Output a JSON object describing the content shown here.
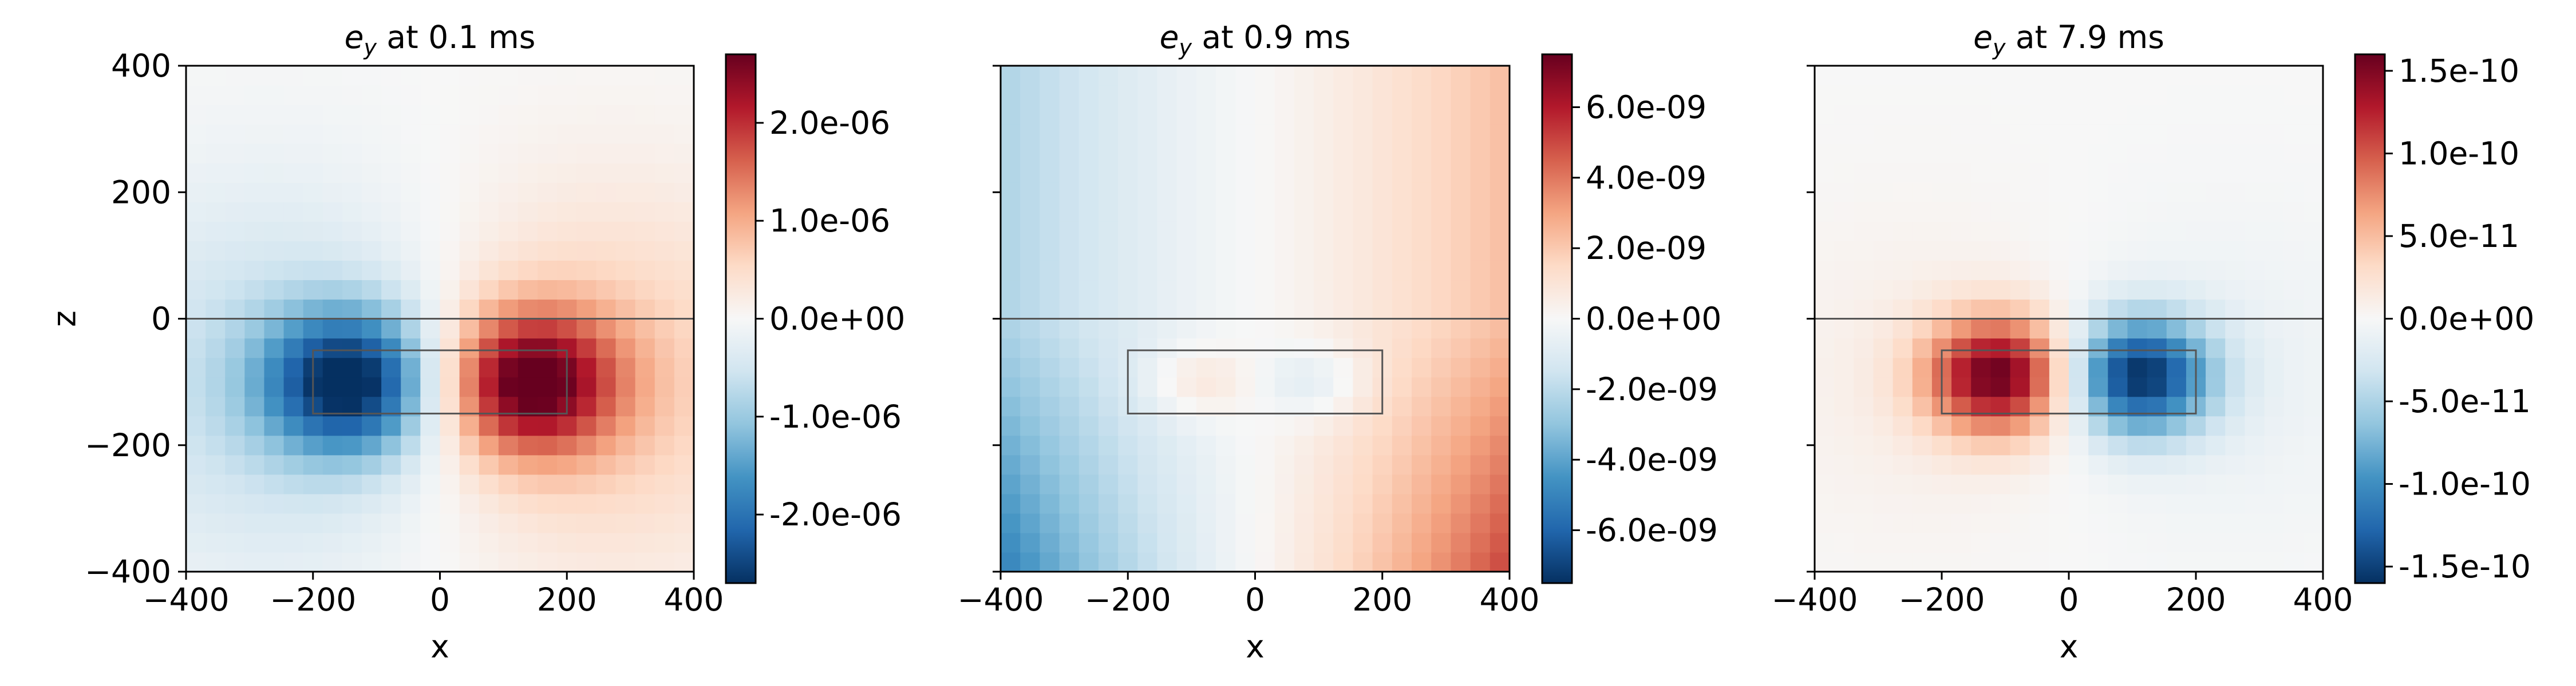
{
  "chart_data": [
    {
      "type": "heatmap",
      "title_symbol": "e",
      "title_sub": "y",
      "title_rest": " at 0.1 ms",
      "xlabel": "x",
      "ylabel": "z",
      "xlim": [
        -400,
        400
      ],
      "ylim": [
        -400,
        400
      ],
      "xticks": [
        -400,
        -200,
        0,
        200,
        400
      ],
      "yticks": [
        -400,
        -200,
        0,
        200,
        400
      ],
      "xtick_labels": [
        "−400",
        "−200",
        "0",
        "200",
        "400"
      ],
      "ytick_labels": [
        "−400",
        "−200",
        "0",
        "200",
        "400"
      ],
      "show_y_tick_labels": true,
      "surface_z": 0,
      "target_box": {
        "x": [
          -200,
          200
        ],
        "z": [
          -150,
          -50
        ]
      },
      "colormap": "RdBu_r",
      "vmin": -2.7e-06,
      "vmax": 2.7e-06,
      "colorbar_ticks": [
        2e-06,
        1e-06,
        0,
        -1e-06,
        -2e-06
      ],
      "colorbar_labels": [
        "2.0e-06",
        "1.0e-06",
        "0.0e+00",
        "-1.0e-06",
        "-2.0e-06"
      ],
      "field": "dipole",
      "peak_value": 2.5e-06,
      "peaks": [
        {
          "x": -140,
          "z": -100,
          "sign": -1
        },
        {
          "x": 140,
          "z": -100,
          "sign": 1
        }
      ],
      "extra_peak_values": [],
      "peak_spread": [
        95,
        80
      ],
      "halo_amplitude": 0.45,
      "halo_spread": [
        260,
        210
      ],
      "grid_cells": 26
    },
    {
      "type": "heatmap",
      "title_symbol": "e",
      "title_sub": "y",
      "title_rest": " at 0.9 ms",
      "xlabel": "x",
      "ylabel": "",
      "xlim": [
        -400,
        400
      ],
      "ylim": [
        -400,
        400
      ],
      "xticks": [
        -400,
        -200,
        0,
        200,
        400
      ],
      "yticks": [
        -400,
        -200,
        0,
        200,
        400
      ],
      "xtick_labels": [
        "−400",
        "−200",
        "0",
        "200",
        "400"
      ],
      "ytick_labels": [],
      "show_y_tick_labels": false,
      "surface_z": 0,
      "target_box": {
        "x": [
          -200,
          200
        ],
        "z": [
          -150,
          -50
        ]
      },
      "colormap": "RdBu_r",
      "vmin": -7.5e-09,
      "vmax": 7.5e-09,
      "colorbar_ticks": [
        6e-09,
        4e-09,
        2e-09,
        0,
        -2e-09,
        -4e-09,
        -6e-09
      ],
      "colorbar_labels": [
        "6.0e-09",
        "4.0e-09",
        "2.0e-09",
        "0.0e+00",
        "-2.0e-09",
        "-4.0e-09",
        "-6.0e-09"
      ],
      "field": "ramp",
      "peak_value": 5.2e-09,
      "peaks": [],
      "extra_peak_values": [
        1.2e-09,
        -1.2e-09
      ],
      "extra_peaks": [
        {
          "x": -90,
          "z": -100
        },
        {
          "x": 90,
          "z": -100
        }
      ],
      "peak_spread": [
        60,
        40
      ],
      "grid_cells": 26
    },
    {
      "type": "heatmap",
      "title_symbol": "e",
      "title_sub": "y",
      "title_rest": " at 7.9 ms",
      "xlabel": "x",
      "ylabel": "",
      "xlim": [
        -400,
        400
      ],
      "ylim": [
        -400,
        400
      ],
      "xticks": [
        -400,
        -200,
        0,
        200,
        400
      ],
      "yticks": [
        -400,
        -200,
        0,
        200,
        400
      ],
      "xtick_labels": [
        "−400",
        "−200",
        "0",
        "200",
        "400"
      ],
      "ytick_labels": [],
      "show_y_tick_labels": false,
      "surface_z": 0,
      "target_box": {
        "x": [
          -200,
          200
        ],
        "z": [
          -150,
          -50
        ]
      },
      "colormap": "RdBu_r",
      "vmin": -1.6e-10,
      "vmax": 1.6e-10,
      "colorbar_ticks": [
        1.5e-10,
        1e-10,
        5e-11,
        0,
        -5e-11,
        -1e-10,
        -1.5e-10
      ],
      "colorbar_labels": [
        "1.5e-10",
        "1.0e-10",
        "5.0e-11",
        "0.0e+00",
        "-5.0e-11",
        "-1.0e-10",
        "-1.5e-10"
      ],
      "field": "dipole",
      "peak_value": 1.55e-10,
      "peaks": [
        {
          "x": -110,
          "z": -90,
          "sign": 1
        },
        {
          "x": 110,
          "z": -90,
          "sign": -1
        }
      ],
      "extra_peak_values": [],
      "peak_spread": [
        80,
        65
      ],
      "halo_amplitude": 0.12,
      "halo_spread": [
        230,
        180
      ],
      "grid_cells": 26
    }
  ]
}
